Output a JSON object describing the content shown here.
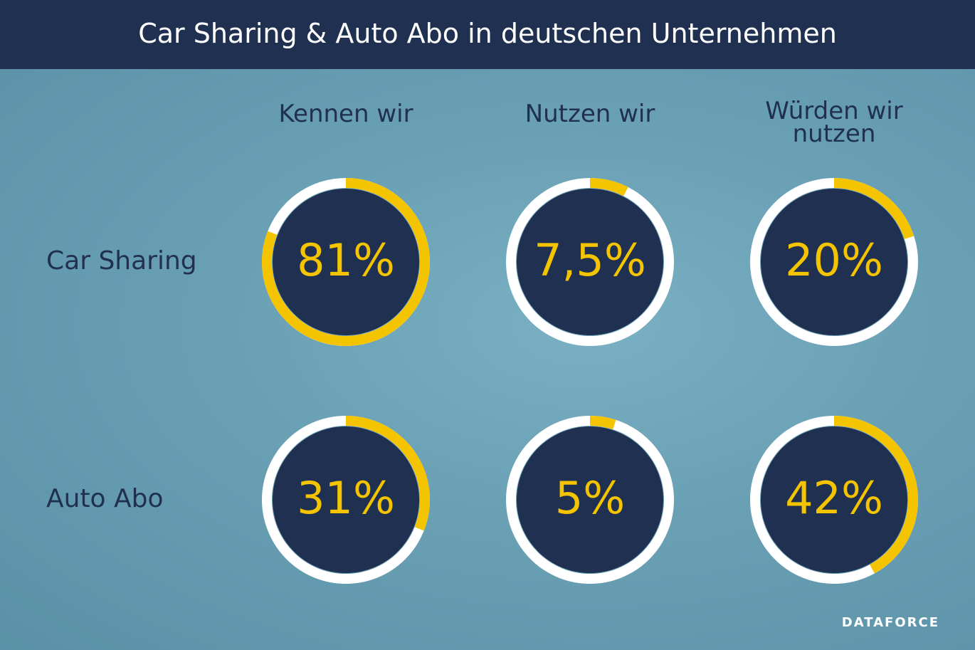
{
  "chart_data": {
    "type": "gauge",
    "title": "Car Sharing & Auto Abo in deutschen Unternehmen",
    "categories": [
      "Kennen wir",
      "Nutzen wir",
      "Würden wir nutzen"
    ],
    "series": [
      {
        "name": "Car Sharing",
        "values": [
          81,
          7.5,
          20
        ],
        "value_labels": [
          "81%",
          "7,5%",
          "20%"
        ]
      },
      {
        "name": "Auto Abo",
        "values": [
          31,
          5,
          42
        ],
        "value_labels": [
          "31%",
          "5%",
          "42%"
        ]
      }
    ],
    "ylim": [
      0,
      100
    ],
    "color": "#f5c400",
    "brand": "DATAFORCE"
  }
}
